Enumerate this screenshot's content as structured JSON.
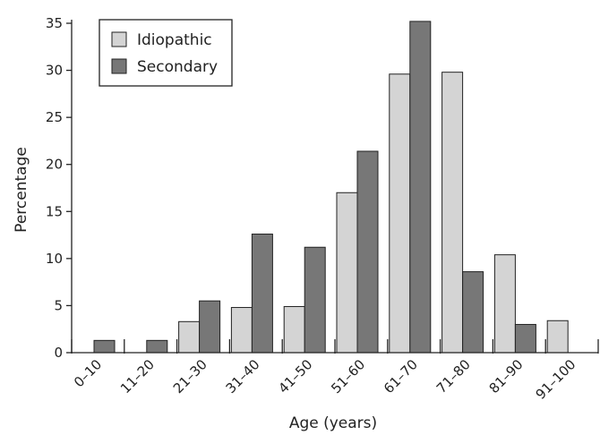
{
  "chart_data": {
    "type": "bar",
    "categories": [
      "0–10",
      "11–20",
      "21–30",
      "31–40",
      "41–50",
      "51–60",
      "61–70",
      "71–80",
      "81–90",
      "91–100"
    ],
    "series": [
      {
        "name": "Idiopathic",
        "color": "#d4d4d4",
        "values": [
          0,
          0,
          3.3,
          4.8,
          4.9,
          17.0,
          29.6,
          29.8,
          10.4,
          3.4
        ]
      },
      {
        "name": "Secondary",
        "color": "#777777",
        "values": [
          1.3,
          1.3,
          5.5,
          12.6,
          11.2,
          21.4,
          35.2,
          8.6,
          3.0,
          0
        ]
      }
    ],
    "xlabel": "Age (years)",
    "ylabel": "Percentage",
    "ylim": [
      0,
      35
    ],
    "yticks": [
      0,
      5,
      10,
      15,
      20,
      25,
      30,
      35
    ],
    "grid": false,
    "legend": "top-left"
  }
}
